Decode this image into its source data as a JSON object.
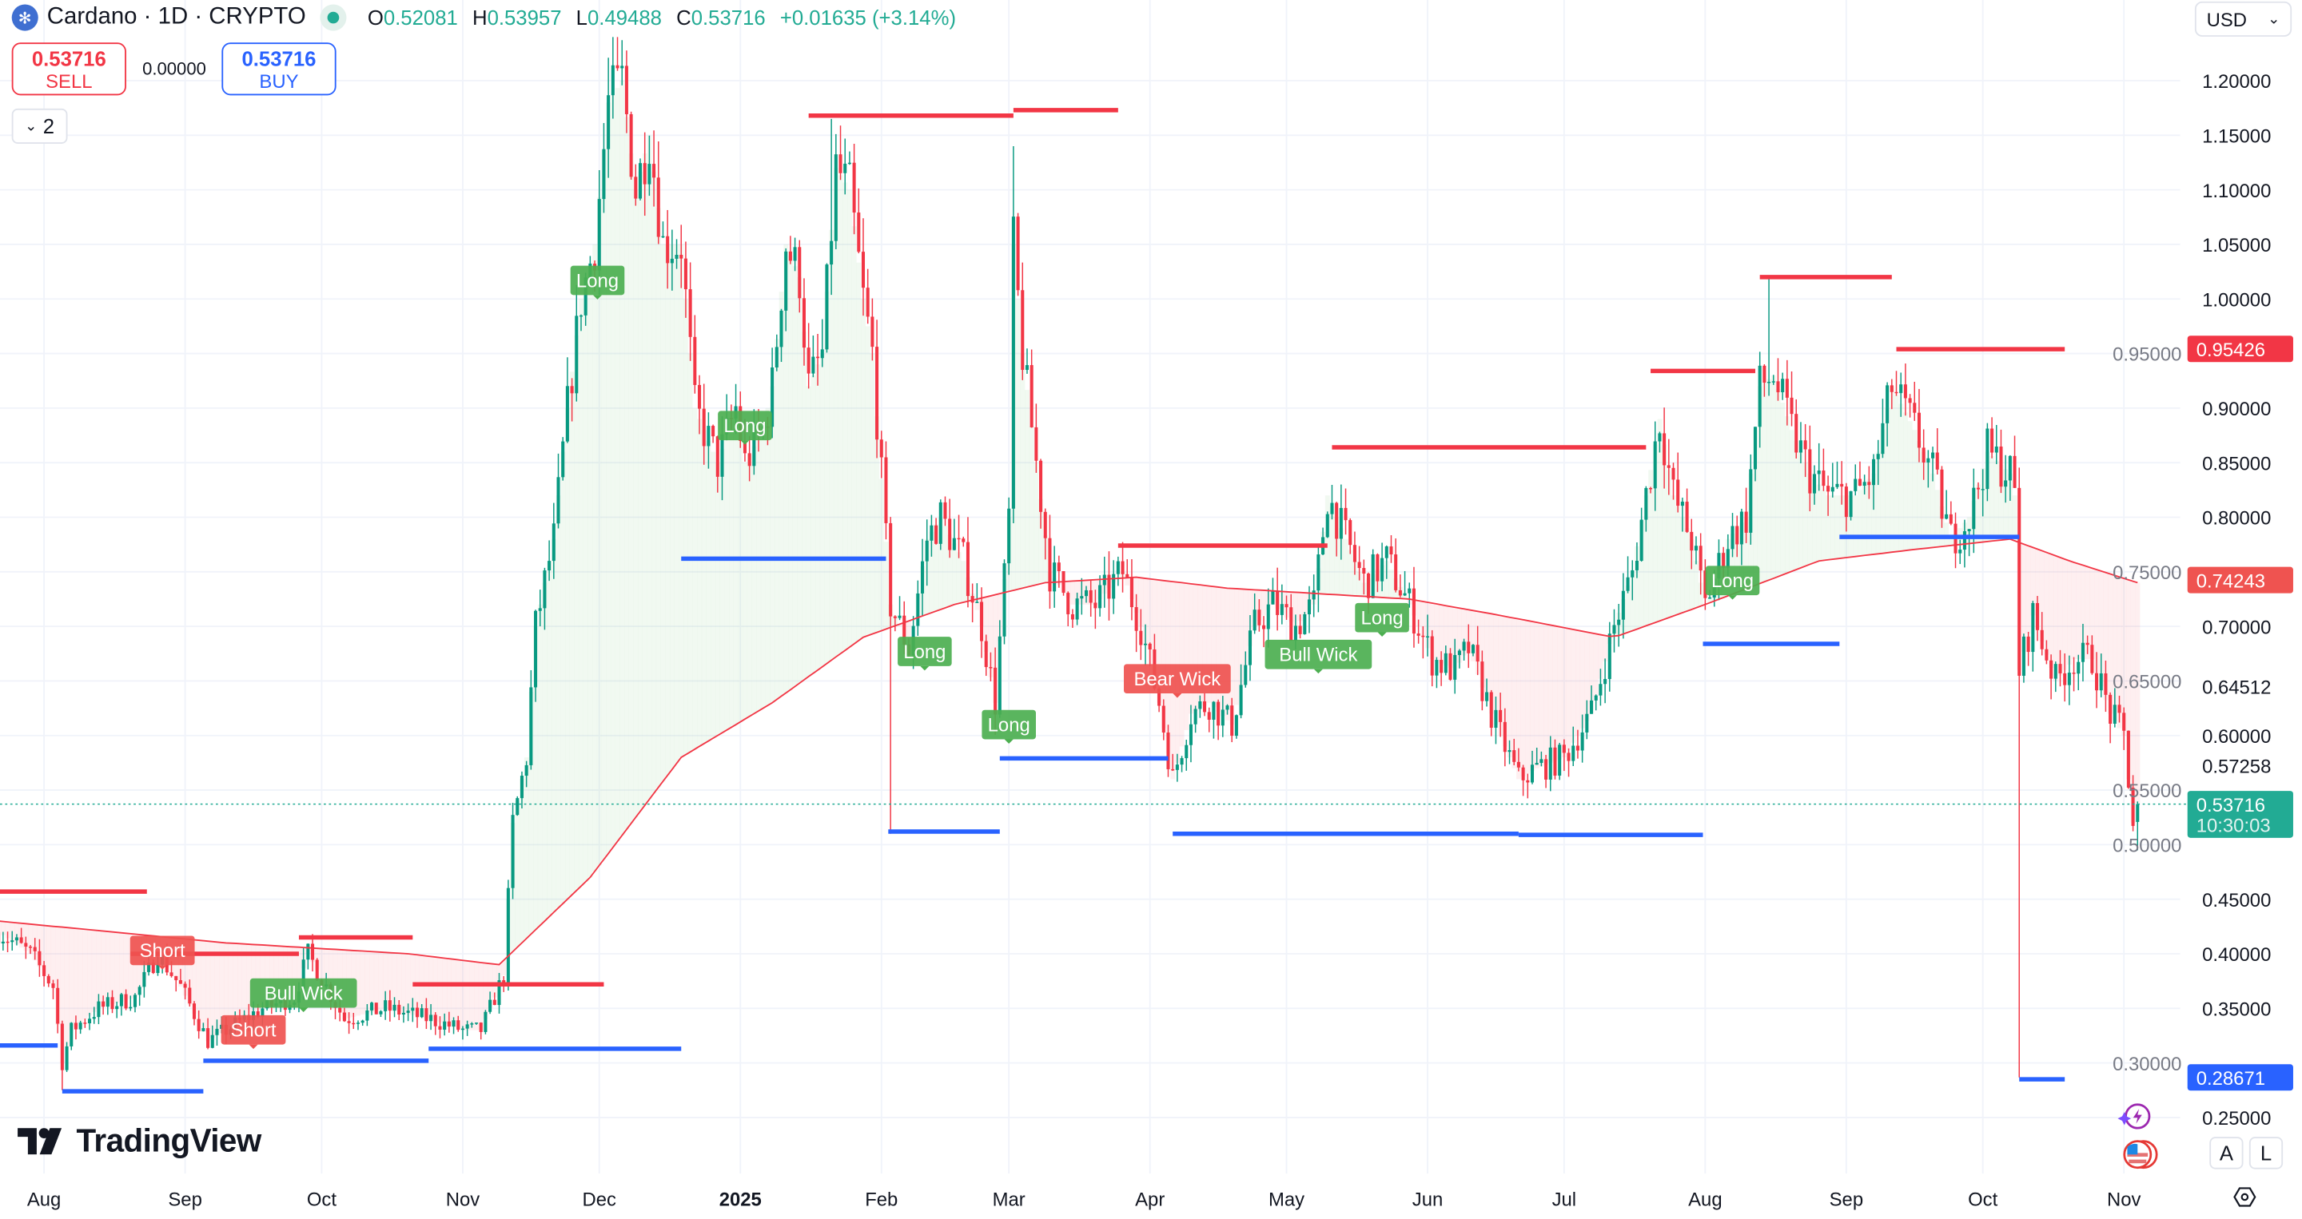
{
  "header": {
    "symbol": "Cardano · 1D · CRYPTO",
    "ohlc": {
      "o_label": "O",
      "o": "0.52081",
      "h_label": "H",
      "h": "0.53957",
      "l_label": "L",
      "l": "0.49488",
      "c_label": "C",
      "c": "0.53716",
      "change": "+0.01635 (+3.14%)"
    }
  },
  "trade": {
    "sell_price": "0.53716",
    "sell_label": "SELL",
    "spread": "0.00000",
    "buy_price": "0.53716",
    "buy_label": "BUY"
  },
  "indicators_collapse": {
    "count": "2"
  },
  "currency": {
    "label": "USD"
  },
  "brand": {
    "name": "TradingView"
  },
  "scale_buttons": {
    "auto": "A",
    "log": "L"
  },
  "colors": {
    "up": "#089981",
    "down": "#f23645",
    "ma": "#f23645",
    "support": "#2962ff",
    "resistance": "#f23645",
    "label_green": "#4caf50",
    "label_red": "#ef5350",
    "fill_green": "#4caf50",
    "fill_red": "#f23645"
  },
  "chart_data": {
    "type": "candlestick",
    "x_start": "2024-08-01",
    "x_ticks": [
      {
        "label": "Aug",
        "day": 0
      },
      {
        "label": "Sep",
        "day": 31
      },
      {
        "label": "Oct",
        "day": 61
      },
      {
        "label": "Nov",
        "day": 92
      },
      {
        "label": "Dec",
        "day": 122
      },
      {
        "label": "2025",
        "day": 153,
        "bold": true
      },
      {
        "label": "Feb",
        "day": 184
      },
      {
        "label": "Mar",
        "day": 212
      },
      {
        "label": "Apr",
        "day": 243
      },
      {
        "label": "May",
        "day": 273
      },
      {
        "label": "Jun",
        "day": 304
      },
      {
        "label": "Jul",
        "day": 334
      },
      {
        "label": "Aug",
        "day": 365
      },
      {
        "label": "Sep",
        "day": 396
      },
      {
        "label": "Oct",
        "day": 426
      },
      {
        "label": "Nov",
        "day": 457
      }
    ],
    "y_ticks": [
      "1.20000",
      "1.15000",
      "1.10000",
      "1.05000",
      "1.00000",
      "0.95000",
      "0.90000",
      "0.85000",
      "0.80000",
      "0.75000",
      "0.70000",
      "0.65000",
      "0.60000",
      "0.55000",
      "0.50000",
      "0.45000",
      "0.40000",
      "0.35000",
      "0.30000",
      "0.25000"
    ],
    "y_extra_labels": [
      "0.64512",
      "0.57258"
    ],
    "ylim": [
      0.2,
      1.25
    ],
    "price_badges": [
      {
        "value": "0.95426",
        "color": "#f23645"
      },
      {
        "value": "0.74243",
        "color": "#ef5350"
      },
      {
        "value": "0.53716",
        "sub": "10:30:03",
        "color": "#22ab94"
      },
      {
        "value": "0.28671",
        "color": "#2962ff"
      }
    ],
    "last_price": 0.53716,
    "close_path": [
      [
        -10,
        0.42
      ],
      [
        -3,
        0.4
      ],
      [
        2,
        0.37
      ],
      [
        4,
        0.3
      ],
      [
        6,
        0.33
      ],
      [
        12,
        0.35
      ],
      [
        20,
        0.36
      ],
      [
        25,
        0.4
      ],
      [
        30,
        0.37
      ],
      [
        36,
        0.32
      ],
      [
        40,
        0.33
      ],
      [
        48,
        0.35
      ],
      [
        55,
        0.36
      ],
      [
        58,
        0.4
      ],
      [
        62,
        0.37
      ],
      [
        66,
        0.34
      ],
      [
        75,
        0.35
      ],
      [
        85,
        0.34
      ],
      [
        92,
        0.33
      ],
      [
        96,
        0.33
      ],
      [
        101,
        0.38
      ],
      [
        103,
        0.52
      ],
      [
        106,
        0.58
      ],
      [
        108,
        0.7
      ],
      [
        112,
        0.78
      ],
      [
        115,
        0.9
      ],
      [
        118,
        1.0
      ],
      [
        121,
        1.05
      ],
      [
        124,
        1.18
      ],
      [
        127,
        1.2
      ],
      [
        130,
        1.1
      ],
      [
        133,
        1.15
      ],
      [
        136,
        1.05
      ],
      [
        140,
        1.05
      ],
      [
        143,
        0.9
      ],
      [
        148,
        0.85
      ],
      [
        152,
        0.9
      ],
      [
        154,
        0.85
      ],
      [
        158,
        0.88
      ],
      [
        160,
        0.92
      ],
      [
        163,
        1.05
      ],
      [
        166,
        1.02
      ],
      [
        168,
        0.92
      ],
      [
        171,
        0.95
      ],
      [
        174,
        1.12
      ],
      [
        177,
        1.1
      ],
      [
        180,
        1.0
      ],
      [
        182,
        0.95
      ],
      [
        186,
        0.72
      ],
      [
        190,
        0.68
      ],
      [
        194,
        0.78
      ],
      [
        197,
        0.8
      ],
      [
        202,
        0.76
      ],
      [
        206,
        0.7
      ],
      [
        209,
        0.63
      ],
      [
        212,
        0.8
      ],
      [
        213,
        1.05
      ],
      [
        215,
        0.95
      ],
      [
        218,
        0.85
      ],
      [
        221,
        0.75
      ],
      [
        226,
        0.72
      ],
      [
        231,
        0.72
      ],
      [
        237,
        0.75
      ],
      [
        241,
        0.7
      ],
      [
        245,
        0.63
      ],
      [
        248,
        0.56
      ],
      [
        252,
        0.62
      ],
      [
        256,
        0.63
      ],
      [
        261,
        0.61
      ],
      [
        266,
        0.7
      ],
      [
        270,
        0.72
      ],
      [
        275,
        0.7
      ],
      [
        279,
        0.72
      ],
      [
        282,
        0.82
      ],
      [
        286,
        0.78
      ],
      [
        290,
        0.74
      ],
      [
        295,
        0.76
      ],
      [
        300,
        0.72
      ],
      [
        305,
        0.67
      ],
      [
        310,
        0.66
      ],
      [
        313,
        0.68
      ],
      [
        318,
        0.62
      ],
      [
        324,
        0.56
      ],
      [
        328,
        0.57
      ],
      [
        334,
        0.58
      ],
      [
        340,
        0.62
      ],
      [
        345,
        0.7
      ],
      [
        349,
        0.75
      ],
      [
        352,
        0.82
      ],
      [
        355,
        0.89
      ],
      [
        358,
        0.82
      ],
      [
        362,
        0.78
      ],
      [
        365,
        0.72
      ],
      [
        370,
        0.78
      ],
      [
        374,
        0.8
      ],
      [
        377,
        0.92
      ],
      [
        380,
        0.93
      ],
      [
        384,
        0.88
      ],
      [
        388,
        0.84
      ],
      [
        392,
        0.82
      ],
      [
        398,
        0.82
      ],
      [
        402,
        0.84
      ],
      [
        406,
        0.92
      ],
      [
        411,
        0.88
      ],
      [
        415,
        0.84
      ],
      [
        419,
        0.78
      ],
      [
        423,
        0.8
      ],
      [
        427,
        0.86
      ],
      [
        432,
        0.84
      ],
      [
        433,
        0.82
      ],
      [
        434,
        0.66
      ],
      [
        437,
        0.71
      ],
      [
        442,
        0.65
      ],
      [
        446,
        0.67
      ],
      [
        450,
        0.67
      ],
      [
        454,
        0.62
      ],
      [
        457,
        0.6
      ],
      [
        459,
        0.52
      ],
      [
        460,
        0.537
      ]
    ],
    "extremes": [
      [
        4,
        "l",
        0.275
      ],
      [
        126,
        "h",
        1.24
      ],
      [
        173,
        "h",
        1.165
      ],
      [
        213,
        "h",
        1.14
      ],
      [
        186,
        "l",
        0.51
      ],
      [
        379,
        "h",
        1.02
      ],
      [
        434,
        "l",
        0.2867
      ],
      [
        460,
        "l",
        0.49488
      ],
      [
        460,
        "h",
        0.53957
      ]
    ],
    "ma_path": [
      [
        -10,
        0.43
      ],
      [
        40,
        0.41
      ],
      [
        80,
        0.4
      ],
      [
        100,
        0.39
      ],
      [
        120,
        0.47
      ],
      [
        140,
        0.58
      ],
      [
        160,
        0.63
      ],
      [
        180,
        0.69
      ],
      [
        200,
        0.72
      ],
      [
        220,
        0.74
      ],
      [
        240,
        0.745
      ],
      [
        260,
        0.735
      ],
      [
        280,
        0.73
      ],
      [
        300,
        0.725
      ],
      [
        320,
        0.71
      ],
      [
        345,
        0.69
      ],
      [
        365,
        0.72
      ],
      [
        390,
        0.76
      ],
      [
        410,
        0.77
      ],
      [
        432,
        0.78
      ],
      [
        445,
        0.76
      ],
      [
        460,
        0.74
      ]
    ],
    "resistance_lines": [
      [
        -10,
        22.6,
        0.457
      ],
      [
        19,
        56,
        0.4
      ],
      [
        56,
        81,
        0.415
      ],
      [
        81,
        123,
        0.372
      ],
      [
        168,
        213,
        1.168
      ],
      [
        213,
        236,
        1.173
      ],
      [
        236,
        282,
        0.774
      ],
      [
        283,
        352,
        0.864
      ],
      [
        353,
        376,
        0.934
      ],
      [
        377,
        406,
        1.02
      ],
      [
        407,
        444,
        0.954
      ]
    ],
    "support_lines": [
      [
        -10,
        3,
        0.316
      ],
      [
        4,
        35,
        0.274
      ],
      [
        35,
        84.5,
        0.302
      ],
      [
        84.5,
        140,
        0.313
      ],
      [
        140,
        185,
        0.762
      ],
      [
        185.5,
        210,
        0.512
      ],
      [
        210,
        247,
        0.579
      ],
      [
        248,
        324,
        0.51
      ],
      [
        324,
        364.5,
        0.509
      ],
      [
        364.5,
        394.5,
        0.684
      ],
      [
        394.5,
        434,
        0.782
      ],
      [
        434,
        444,
        0.285
      ]
    ],
    "signals": [
      {
        "text": "Long",
        "type": "long",
        "day": 121.6,
        "price": 1.017
      },
      {
        "text": "Long",
        "type": "long",
        "day": 154,
        "price": 0.884
      },
      {
        "text": "Long",
        "type": "long",
        "day": 193.5,
        "price": 0.677
      },
      {
        "text": "Long",
        "type": "long",
        "day": 212,
        "price": 0.61
      },
      {
        "text": "Long",
        "type": "long",
        "day": 294,
        "price": 0.708
      },
      {
        "text": "Long",
        "type": "long",
        "day": 371,
        "price": 0.742
      },
      {
        "text": "Bull Wick",
        "type": "long",
        "day": 280,
        "price": 0.72
      },
      {
        "text": "Bull Wick",
        "type": "long",
        "day": 57,
        "price": 0.364
      },
      {
        "text": "Short",
        "type": "short",
        "day": 26,
        "price": 0.403
      },
      {
        "text": "Short",
        "type": "short",
        "day": 46,
        "price": 0.376
      },
      {
        "text": "Bear Wick",
        "type": "short",
        "day": 249,
        "price": 0.652
      }
    ]
  }
}
